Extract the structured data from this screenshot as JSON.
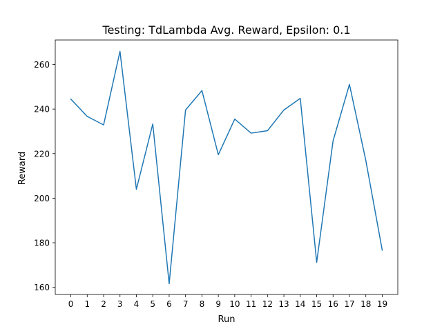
{
  "chart_data": {
    "type": "line",
    "title": "Testing: TdLambda Avg. Reward, Epsilon: 0.1",
    "xlabel": "Run",
    "ylabel": "Reward",
    "x": [
      0,
      1,
      2,
      3,
      4,
      5,
      6,
      7,
      8,
      9,
      10,
      11,
      12,
      13,
      14,
      15,
      16,
      17,
      18,
      19
    ],
    "series": [
      {
        "name": "",
        "color": "#1f77b4",
        "values": [
          244.5,
          236.7,
          232.9,
          265.9,
          204.0,
          233.3,
          161.6,
          239.6,
          248.3,
          219.5,
          235.5,
          229.2,
          230.3,
          239.6,
          244.8,
          171.2,
          225.7,
          251.1,
          216.9,
          176.7
        ]
      }
    ],
    "xlim": [
      -0.95,
      19.95
    ],
    "ylim": [
      156.8,
      271.0
    ],
    "xticks": [
      0,
      1,
      2,
      3,
      4,
      5,
      6,
      7,
      8,
      9,
      10,
      11,
      12,
      13,
      14,
      15,
      16,
      17,
      18,
      19
    ],
    "yticks": [
      160,
      180,
      200,
      220,
      240,
      260
    ],
    "grid": false,
    "legend": "none"
  }
}
